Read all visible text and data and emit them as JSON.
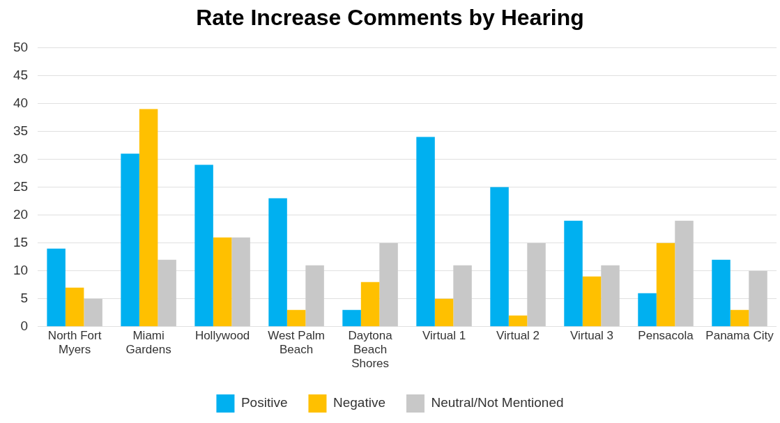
{
  "chart_data": {
    "type": "bar",
    "title": "Rate Increase Comments by Hearing",
    "categories": [
      "North Fort Myers",
      "Miami Gardens",
      "Hollywood",
      "West Palm Beach",
      "Daytona Beach Shores",
      "Virtual 1",
      "Virtual 2",
      "Virtual 3",
      "Pensacola",
      "Panama City"
    ],
    "series": [
      {
        "name": "Positive",
        "color": "#00b0f0",
        "values": [
          14,
          31,
          29,
          23,
          3,
          34,
          25,
          19,
          6,
          12
        ]
      },
      {
        "name": "Negative",
        "color": "#ffc000",
        "values": [
          7,
          39,
          16,
          3,
          8,
          5,
          2,
          9,
          15,
          3
        ]
      },
      {
        "name": "Neutral/Not Mentioned",
        "color": "#c8c8c8",
        "values": [
          5,
          12,
          16,
          11,
          15,
          11,
          15,
          11,
          19,
          10
        ]
      }
    ],
    "ylim": [
      0,
      50
    ],
    "yticks": [
      0,
      5,
      10,
      15,
      20,
      25,
      30,
      35,
      40,
      45,
      50
    ],
    "grid": "y",
    "legend": "bottom"
  }
}
